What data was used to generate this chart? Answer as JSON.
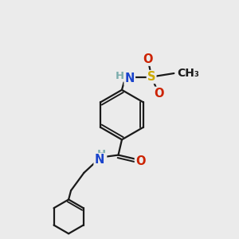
{
  "bg_color": "#ebebeb",
  "bond_color": "#1a1a1a",
  "N_color": "#1a44cc",
  "O_color": "#cc2200",
  "S_color": "#ccaa00",
  "H_color": "#7aacac",
  "line_width": 1.6,
  "font_size": 10.5,
  "xlim": [
    0,
    10
  ],
  "ylim": [
    0,
    10
  ]
}
